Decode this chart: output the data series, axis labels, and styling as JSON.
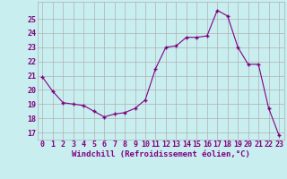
{
  "x": [
    0,
    1,
    2,
    3,
    4,
    5,
    6,
    7,
    8,
    9,
    10,
    11,
    12,
    13,
    14,
    15,
    16,
    17,
    18,
    19,
    20,
    21,
    22,
    23
  ],
  "y": [
    20.9,
    19.9,
    19.1,
    19.0,
    18.9,
    18.5,
    18.1,
    18.3,
    18.4,
    18.7,
    19.3,
    21.5,
    23.0,
    23.1,
    23.7,
    23.7,
    23.8,
    25.6,
    25.2,
    23.0,
    21.8,
    21.8,
    18.7,
    16.8
  ],
  "line_color": "#800080",
  "marker": "+",
  "bg_color": "#c8eef0",
  "grid_color": "#b0b0b0",
  "xlabel": "Windchill (Refroidissement éolien,°C)",
  "xlabel_fontsize": 6.5,
  "tick_fontsize": 6.0,
  "ylabel_ticks": [
    17,
    18,
    19,
    20,
    21,
    22,
    23,
    24,
    25
  ],
  "ylim": [
    16.5,
    26.2
  ],
  "xlim": [
    -0.5,
    23.5
  ]
}
